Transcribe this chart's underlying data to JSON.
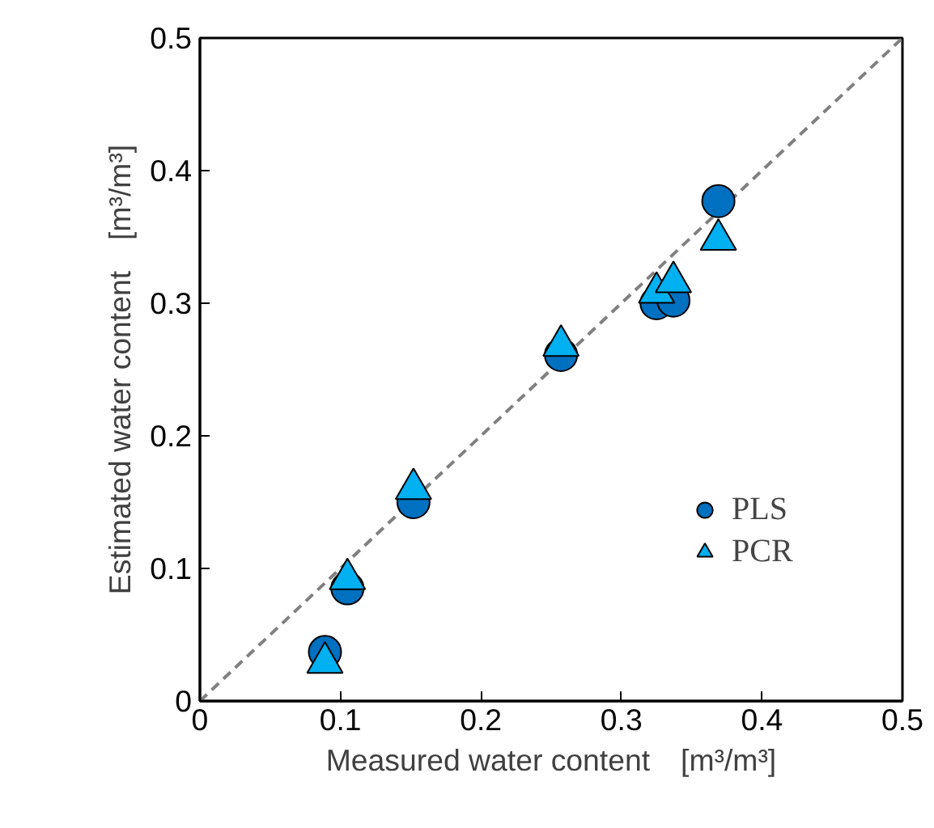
{
  "chart_data": {
    "type": "scatter",
    "xlabel": "Measured water content　[m³/m³]",
    "ylabel": "Estimated water content　[m³/m³]",
    "xlim": [
      0,
      0.5
    ],
    "ylim": [
      0,
      0.5
    ],
    "xticks": [
      0,
      0.1,
      0.2,
      0.3,
      0.4,
      0.5
    ],
    "yticks": [
      0,
      0.1,
      0.2,
      0.3,
      0.4,
      0.5
    ],
    "grid": false,
    "legend": "right",
    "series": [
      {
        "type": "line",
        "x": [
          0,
          0.5
        ],
        "values": [
          0,
          0.5
        ],
        "color": "#808080",
        "line_style": "dashed",
        "marker": "none"
      },
      {
        "name": "PLS",
        "marker": "circle",
        "color": "#0070c0",
        "x": [
          0.089,
          0.105,
          0.152,
          0.257,
          0.325,
          0.337,
          0.369
        ],
        "values": [
          0.037,
          0.085,
          0.15,
          0.261,
          0.3,
          0.302,
          0.377
        ]
      },
      {
        "name": "PCR",
        "marker": "triangle",
        "color": "#00b0f0",
        "x": [
          0.089,
          0.105,
          0.152,
          0.257,
          0.325,
          0.337,
          0.369
        ],
        "values": [
          0.029,
          0.092,
          0.16,
          0.268,
          0.308,
          0.316,
          0.348
        ]
      }
    ]
  }
}
